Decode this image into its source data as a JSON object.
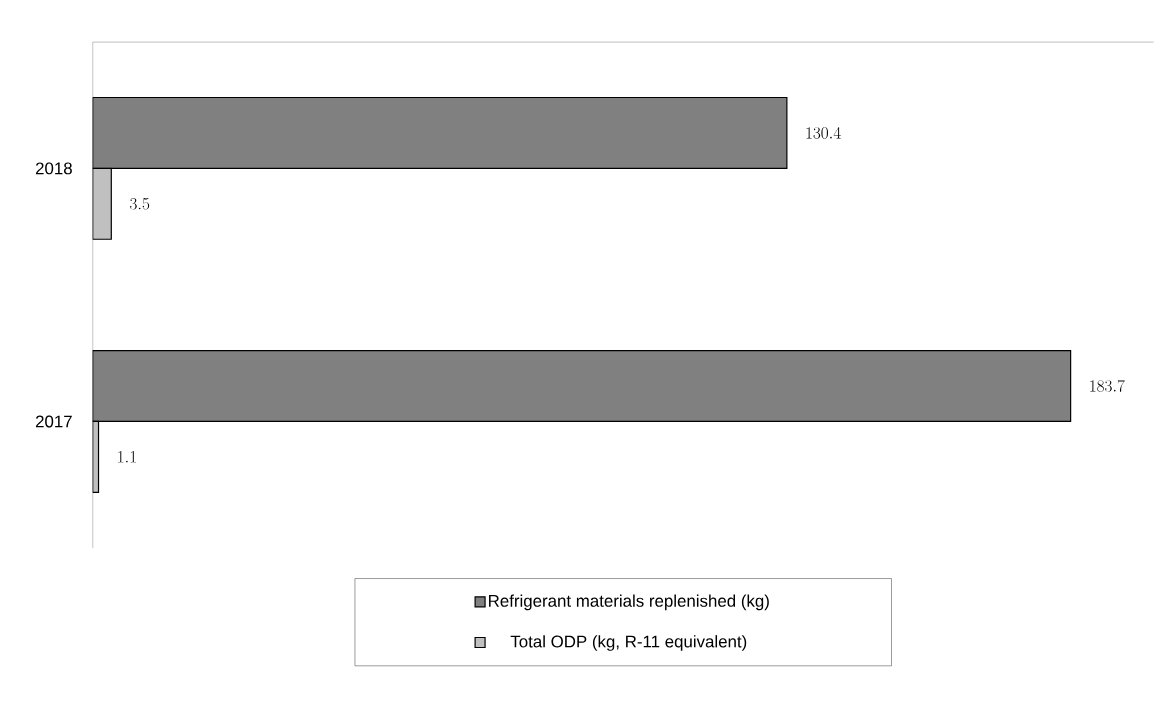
{
  "chart_data": {
    "type": "bar",
    "orientation": "horizontal",
    "categories": [
      "2018",
      "2017"
    ],
    "series": [
      {
        "name": "Refrigerant materials replenished (kg)",
        "color": "#808080",
        "values": [
          130.4,
          183.7
        ]
      },
      {
        "name": "Total ODP (kg, R-11 equivalent)",
        "color": "#c0c0c0",
        "values": [
          3.5,
          1.1
        ]
      }
    ],
    "data_labels": true,
    "legend": "bottom",
    "tick_labels": "y"
  }
}
